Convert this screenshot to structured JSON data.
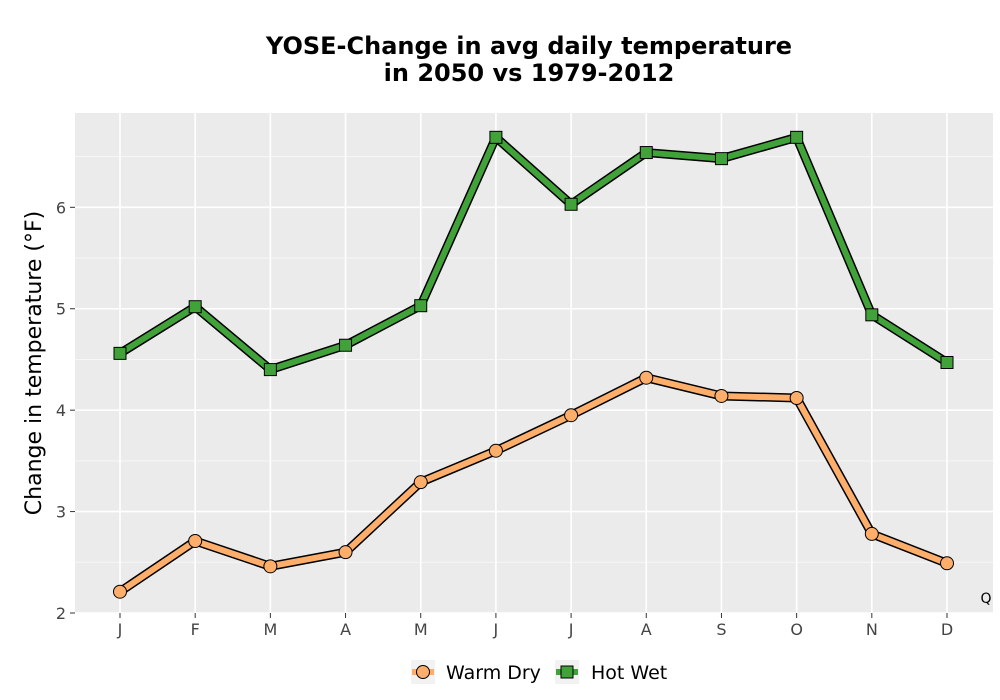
{
  "chart_data": {
    "type": "line",
    "title": [
      "YOSE-Change in avg daily temperature",
      "in 2050 vs 1979-2012"
    ],
    "xlabel": "",
    "ylabel": "Change in temperature (°F)",
    "categories": [
      "J",
      "F",
      "M",
      "A",
      "M",
      "J",
      "J",
      "A",
      "S",
      "O",
      "N",
      "D"
    ],
    "ylim": [
      2,
      6.93
    ],
    "yticks": [
      2,
      3,
      4,
      5,
      6
    ],
    "grid": true,
    "legend_position": "bottom",
    "series": [
      {
        "name": "Warm Dry",
        "marker": "circle",
        "color": "#fdae6b",
        "values": [
          2.21,
          2.71,
          2.46,
          2.6,
          3.29,
          3.6,
          3.95,
          4.32,
          4.14,
          4.12,
          2.78,
          2.49
        ]
      },
      {
        "name": "Hot Wet",
        "marker": "square",
        "color": "#41a23a",
        "values": [
          4.56,
          5.02,
          4.4,
          4.64,
          5.03,
          6.69,
          6.03,
          6.54,
          6.48,
          6.69,
          4.94,
          4.47
        ]
      }
    ],
    "corner_label": "Q"
  }
}
